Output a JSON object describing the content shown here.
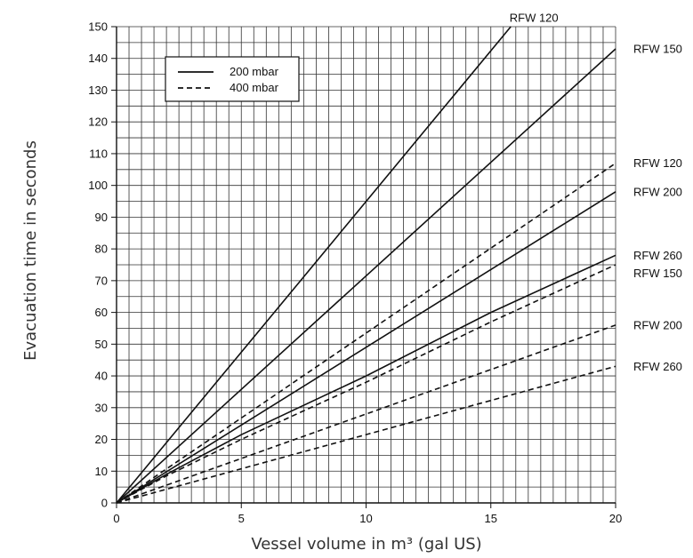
{
  "chart_data": {
    "type": "line",
    "title": "",
    "xlabel": "Vessel volume in m³ (gal US)",
    "ylabel": "Evacuation time in seconds",
    "xlim": [
      0,
      20
    ],
    "ylim": [
      0,
      150
    ],
    "x_ticks": [
      0,
      5,
      10,
      15,
      20
    ],
    "y_ticks": [
      0,
      10,
      20,
      30,
      40,
      50,
      60,
      70,
      80,
      90,
      100,
      110,
      120,
      130,
      140,
      150
    ],
    "grid": true,
    "legend": {
      "placement": "top-left",
      "entries": [
        {
          "label": "200 mbar",
          "style": "solid"
        },
        {
          "label": "400 mbar",
          "style": "dashed"
        }
      ]
    },
    "series": [
      {
        "name": "RFW 120",
        "pressure": "200 mbar",
        "style": "solid",
        "x": [
          0,
          15.8
        ],
        "y": [
          0,
          150
        ]
      },
      {
        "name": "RFW 150",
        "pressure": "200 mbar",
        "style": "solid",
        "x": [
          0,
          20
        ],
        "y": [
          0,
          143
        ]
      },
      {
        "name": "RFW 200",
        "pressure": "200 mbar",
        "style": "solid",
        "x": [
          0,
          20
        ],
        "y": [
          0,
          98
        ]
      },
      {
        "name": "RFW 260",
        "pressure": "200 mbar",
        "style": "solid",
        "x": [
          0,
          2,
          5,
          10,
          15,
          20
        ],
        "y": [
          0,
          9,
          21.5,
          40,
          60,
          78
        ]
      },
      {
        "name": "RFW 120",
        "pressure": "400 mbar",
        "style": "dashed",
        "x": [
          0,
          20
        ],
        "y": [
          0,
          107
        ]
      },
      {
        "name": "RFW 150",
        "pressure": "400 mbar",
        "style": "dashed",
        "x": [
          0,
          2,
          5,
          10,
          15,
          20
        ],
        "y": [
          0,
          8.5,
          20,
          38,
          57,
          75
        ]
      },
      {
        "name": "RFW 200",
        "pressure": "400 mbar",
        "style": "dashed",
        "x": [
          0,
          20
        ],
        "y": [
          0,
          56
        ]
      },
      {
        "name": "RFW 260",
        "pressure": "400 mbar",
        "style": "dashed",
        "x": [
          0,
          20
        ],
        "y": [
          0,
          43
        ]
      }
    ]
  }
}
